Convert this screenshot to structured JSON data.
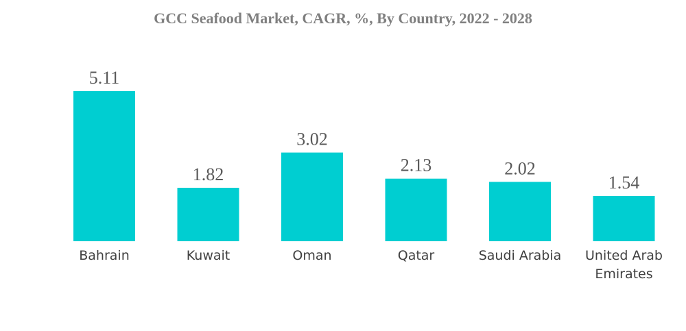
{
  "chart_data": {
    "type": "bar",
    "title": "GCC Seafood Market, CAGR, %, By Country, 2022 - 2028",
    "categories": [
      "Bahrain",
      "Kuwait",
      "Oman",
      "Qatar",
      "Saudi Arabia",
      "United Arab Emirates"
    ],
    "category_lines": [
      [
        "Bahrain"
      ],
      [
        "Kuwait"
      ],
      [
        "Oman"
      ],
      [
        "Qatar"
      ],
      [
        "Saudi Arabia"
      ],
      [
        "United Arab",
        "Emirates"
      ]
    ],
    "values": [
      5.11,
      1.82,
      3.02,
      2.13,
      2.02,
      1.54
    ],
    "value_labels": [
      "5.11",
      "1.82",
      "3.02",
      "2.13",
      "2.02",
      "1.54"
    ],
    "xlabel": "",
    "ylabel": "",
    "ylim": [
      0,
      5.11
    ],
    "grid": false,
    "legend": "none",
    "bar_color": "#00CED1"
  }
}
